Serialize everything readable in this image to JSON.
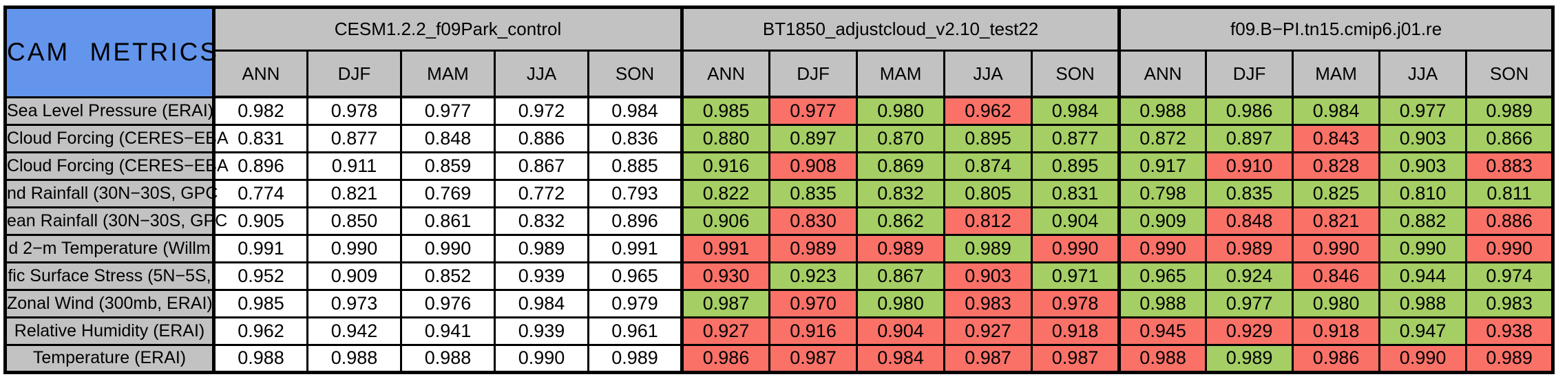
{
  "title": "CAM METRICS",
  "colors": {
    "white": "#FFFFFF",
    "green": "#A5CE64",
    "red": "#FA7168",
    "header_blue": "#6495ED",
    "header_gray": "#C2C2C2",
    "border_black": "#000000"
  },
  "chart_data": {
    "type": "table",
    "title": "CAM METRICS",
    "column_groups": [
      "CESM1.2.2_f09Park_control",
      "BT1850_adjustcloud_v2.10_test22",
      "f09.B−PI.tn15.cmip6.j01.re"
    ],
    "seasons": [
      "ANN",
      "DJF",
      "MAM",
      "JJA",
      "SON"
    ],
    "rows": [
      {
        "label": "Sea Level Pressure (ERAI)",
        "groups": [
          {
            "values": [
              "0.982",
              "0.978",
              "0.977",
              "0.972",
              "0.984"
            ],
            "colors": [
              "white",
              "white",
              "white",
              "white",
              "white"
            ]
          },
          {
            "values": [
              "0.985",
              "0.977",
              "0.980",
              "0.962",
              "0.984"
            ],
            "colors": [
              "green",
              "red",
              "green",
              "red",
              "green"
            ]
          },
          {
            "values": [
              "0.988",
              "0.986",
              "0.984",
              "0.977",
              "0.989"
            ],
            "colors": [
              "green",
              "green",
              "green",
              "green",
              "green"
            ]
          }
        ]
      },
      {
        "label": "Cloud Forcing (CERES−EBA",
        "groups": [
          {
            "values": [
              "0.831",
              "0.877",
              "0.848",
              "0.886",
              "0.836"
            ],
            "colors": [
              "white",
              "white",
              "white",
              "white",
              "white"
            ]
          },
          {
            "values": [
              "0.880",
              "0.897",
              "0.870",
              "0.895",
              "0.877"
            ],
            "colors": [
              "green",
              "green",
              "green",
              "green",
              "green"
            ]
          },
          {
            "values": [
              "0.872",
              "0.897",
              "0.843",
              "0.903",
              "0.866"
            ],
            "colors": [
              "green",
              "green",
              "red",
              "green",
              "green"
            ]
          }
        ]
      },
      {
        "label": "Cloud Forcing (CERES−EBA",
        "groups": [
          {
            "values": [
              "0.896",
              "0.911",
              "0.859",
              "0.867",
              "0.885"
            ],
            "colors": [
              "white",
              "white",
              "white",
              "white",
              "white"
            ]
          },
          {
            "values": [
              "0.916",
              "0.908",
              "0.869",
              "0.874",
              "0.895"
            ],
            "colors": [
              "green",
              "red",
              "green",
              "green",
              "green"
            ]
          },
          {
            "values": [
              "0.917",
              "0.910",
              "0.828",
              "0.903",
              "0.883"
            ],
            "colors": [
              "green",
              "red",
              "red",
              "green",
              "red"
            ]
          }
        ]
      },
      {
        "label": "nd Rainfall (30N−30S, GPC",
        "groups": [
          {
            "values": [
              "0.774",
              "0.821",
              "0.769",
              "0.772",
              "0.793"
            ],
            "colors": [
              "white",
              "white",
              "white",
              "white",
              "white"
            ]
          },
          {
            "values": [
              "0.822",
              "0.835",
              "0.832",
              "0.805",
              "0.831"
            ],
            "colors": [
              "green",
              "green",
              "green",
              "green",
              "green"
            ]
          },
          {
            "values": [
              "0.798",
              "0.835",
              "0.825",
              "0.810",
              "0.811"
            ],
            "colors": [
              "green",
              "green",
              "green",
              "green",
              "green"
            ]
          }
        ]
      },
      {
        "label": "ean Rainfall (30N−30S, GPC",
        "groups": [
          {
            "values": [
              "0.905",
              "0.850",
              "0.861",
              "0.832",
              "0.896"
            ],
            "colors": [
              "white",
              "white",
              "white",
              "white",
              "white"
            ]
          },
          {
            "values": [
              "0.906",
              "0.830",
              "0.862",
              "0.812",
              "0.904"
            ],
            "colors": [
              "green",
              "red",
              "green",
              "red",
              "green"
            ]
          },
          {
            "values": [
              "0.909",
              "0.848",
              "0.821",
              "0.882",
              "0.886"
            ],
            "colors": [
              "green",
              "red",
              "red",
              "green",
              "red"
            ]
          }
        ]
      },
      {
        "label": "d 2−m Temperature (Willm",
        "groups": [
          {
            "values": [
              "0.991",
              "0.990",
              "0.990",
              "0.989",
              "0.991"
            ],
            "colors": [
              "white",
              "white",
              "white",
              "white",
              "white"
            ]
          },
          {
            "values": [
              "0.991",
              "0.989",
              "0.989",
              "0.989",
              "0.990"
            ],
            "colors": [
              "red",
              "red",
              "red",
              "green",
              "red"
            ]
          },
          {
            "values": [
              "0.990",
              "0.989",
              "0.990",
              "0.990",
              "0.990"
            ],
            "colors": [
              "red",
              "red",
              "red",
              "green",
              "red"
            ]
          }
        ]
      },
      {
        "label": "fic Surface Stress (5N−5S,",
        "groups": [
          {
            "values": [
              "0.952",
              "0.909",
              "0.852",
              "0.939",
              "0.965"
            ],
            "colors": [
              "white",
              "white",
              "white",
              "white",
              "white"
            ]
          },
          {
            "values": [
              "0.930",
              "0.923",
              "0.867",
              "0.903",
              "0.971"
            ],
            "colors": [
              "red",
              "green",
              "green",
              "red",
              "green"
            ]
          },
          {
            "values": [
              "0.965",
              "0.924",
              "0.846",
              "0.944",
              "0.974"
            ],
            "colors": [
              "green",
              "green",
              "red",
              "green",
              "green"
            ]
          }
        ]
      },
      {
        "label": "Zonal Wind (300mb, ERAI)",
        "groups": [
          {
            "values": [
              "0.985",
              "0.973",
              "0.976",
              "0.984",
              "0.979"
            ],
            "colors": [
              "white",
              "white",
              "white",
              "white",
              "white"
            ]
          },
          {
            "values": [
              "0.987",
              "0.970",
              "0.980",
              "0.983",
              "0.978"
            ],
            "colors": [
              "green",
              "red",
              "green",
              "red",
              "red"
            ]
          },
          {
            "values": [
              "0.988",
              "0.977",
              "0.980",
              "0.988",
              "0.983"
            ],
            "colors": [
              "green",
              "green",
              "green",
              "green",
              "green"
            ]
          }
        ]
      },
      {
        "label": "Relative Humidity (ERAI)",
        "groups": [
          {
            "values": [
              "0.962",
              "0.942",
              "0.941",
              "0.939",
              "0.961"
            ],
            "colors": [
              "white",
              "white",
              "white",
              "white",
              "white"
            ]
          },
          {
            "values": [
              "0.927",
              "0.916",
              "0.904",
              "0.927",
              "0.918"
            ],
            "colors": [
              "red",
              "red",
              "red",
              "red",
              "red"
            ]
          },
          {
            "values": [
              "0.945",
              "0.929",
              "0.918",
              "0.947",
              "0.938"
            ],
            "colors": [
              "red",
              "red",
              "red",
              "green",
              "red"
            ]
          }
        ]
      },
      {
        "label": "Temperature (ERAI)",
        "groups": [
          {
            "values": [
              "0.988",
              "0.988",
              "0.988",
              "0.990",
              "0.989"
            ],
            "colors": [
              "white",
              "white",
              "white",
              "white",
              "white"
            ]
          },
          {
            "values": [
              "0.986",
              "0.987",
              "0.984",
              "0.987",
              "0.987"
            ],
            "colors": [
              "red",
              "red",
              "red",
              "red",
              "red"
            ]
          },
          {
            "values": [
              "0.988",
              "0.989",
              "0.986",
              "0.990",
              "0.989"
            ],
            "colors": [
              "red",
              "green",
              "red",
              "red",
              "red"
            ]
          }
        ]
      }
    ]
  }
}
